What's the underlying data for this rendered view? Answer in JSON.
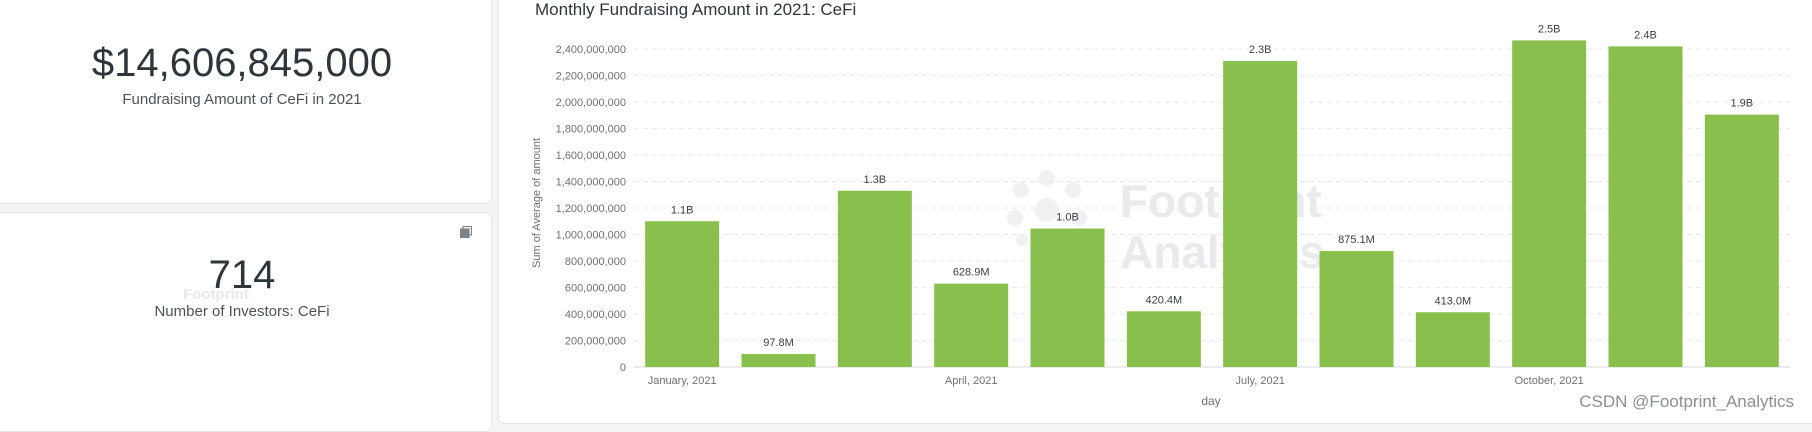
{
  "cards": {
    "total": {
      "value": "$14,606,845,000",
      "label": "Fundraising Amount of CeFi in 2021"
    },
    "investors": {
      "value": "714",
      "label": "Number of Investors: CeFi"
    },
    "watermark": "Footprint"
  },
  "chart_watermark": {
    "line1": "Footprint",
    "line2": "Analytics"
  },
  "footer": {
    "credit": "CSDN @Footprint_Analytics"
  },
  "icons": {
    "expand": "expand-icon"
  },
  "colors": {
    "bar": "#88bf4d",
    "text": "#2e353b",
    "axis_text": "#6b7075",
    "grid": "#e8eaed"
  },
  "chart_data": {
    "type": "bar",
    "title": "Monthly Fundraising Amount in 2021: CeFi",
    "xlabel": "day",
    "ylabel": "Sum of Average of amount",
    "ylim": [
      0,
      2400000000
    ],
    "y_ticks": [
      {
        "value": 0,
        "label": "0"
      },
      {
        "value": 200000000,
        "label": "200,000,000"
      },
      {
        "value": 400000000,
        "label": "400,000,000"
      },
      {
        "value": 600000000,
        "label": "600,000,000"
      },
      {
        "value": 800000000,
        "label": "800,000,000"
      },
      {
        "value": 1000000000,
        "label": "1,000,000,000"
      },
      {
        "value": 1200000000,
        "label": "1,200,000,000"
      },
      {
        "value": 1400000000,
        "label": "1,400,000,000"
      },
      {
        "value": 1600000000,
        "label": "1,600,000,000"
      },
      {
        "value": 1800000000,
        "label": "1,800,000,000"
      },
      {
        "value": 2000000000,
        "label": "2,000,000,000"
      },
      {
        "value": 2200000000,
        "label": "2,200,000,000"
      },
      {
        "value": 2400000000,
        "label": "2,400,000,000"
      }
    ],
    "x_tick_labels": [
      {
        "index": 0,
        "label": "January, 2021"
      },
      {
        "index": 3,
        "label": "April, 2021"
      },
      {
        "index": 6,
        "label": "July, 2021"
      },
      {
        "index": 9,
        "label": "October, 2021"
      }
    ],
    "categories": [
      "2021-01",
      "2021-02",
      "2021-03",
      "2021-04",
      "2021-05",
      "2021-06",
      "2021-07",
      "2021-08",
      "2021-09",
      "2021-10",
      "2021-11",
      "2021-12"
    ],
    "values": [
      1100000000,
      97800000,
      1330000000,
      628900000,
      1045000000,
      420400000,
      2310000000,
      875100000,
      413000000,
      2465000000,
      2420000000,
      1905000000
    ],
    "data_labels": [
      "1.1B",
      "97.8M",
      "1.3B",
      "628.9M",
      "1.0B",
      "420.4M",
      "2.3B",
      "875.1M",
      "413.0M",
      "2.5B",
      "2.4B",
      "1.9B"
    ],
    "grid": true,
    "legend": "none"
  }
}
